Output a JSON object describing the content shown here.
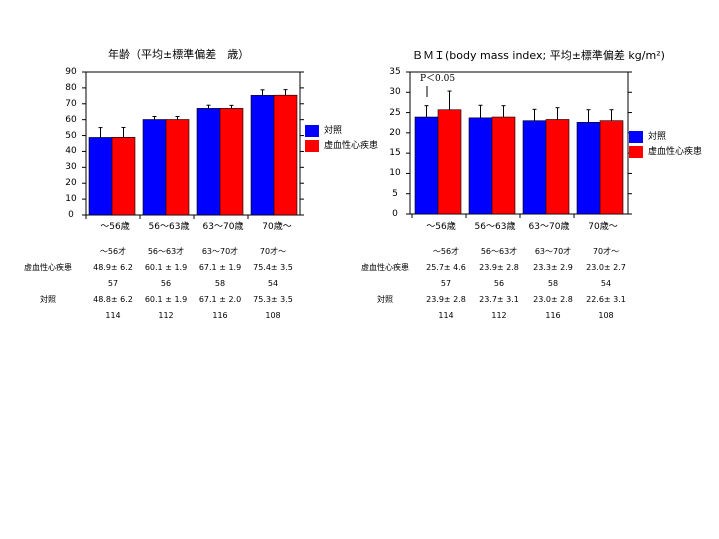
{
  "colors": {
    "control": "#0000ff",
    "disease": "#ff0000"
  },
  "legend": {
    "control": "対照",
    "disease": "虚血性心疾患"
  },
  "chart_data": [
    {
      "type": "bar",
      "title": "年齢（平均±標準偏差　歳）",
      "categories": [
        "～56歳",
        "56～63歳",
        "63～70歳",
        "70歳～"
      ],
      "ylim": [
        0,
        90
      ],
      "yticks": [
        0,
        10,
        20,
        30,
        40,
        50,
        60,
        70,
        80,
        90
      ],
      "series": [
        {
          "name": "対照",
          "values": [
            48.8,
            60.1,
            67.1,
            75.3
          ],
          "sd": [
            6.2,
            1.9,
            2.0,
            3.5
          ]
        },
        {
          "name": "虚血性心疾患",
          "values": [
            48.9,
            60.1,
            67.1,
            75.4
          ],
          "sd": [
            6.2,
            1.9,
            1.9,
            3.5
          ]
        }
      ]
    },
    {
      "type": "bar",
      "title": "ＢＭＩ(body mass index;  平均±標準偏差 kg/m²)",
      "annotation": "P＜0.05",
      "categories": [
        "～56歳",
        "56～63歳",
        "63～70歳",
        "70歳～"
      ],
      "ylim": [
        0,
        35
      ],
      "yticks": [
        0,
        5,
        10,
        15,
        20,
        25,
        30,
        35
      ],
      "series": [
        {
          "name": "対照",
          "values": [
            23.9,
            23.7,
            23.0,
            22.6
          ],
          "sd": [
            2.8,
            3.1,
            2.8,
            3.1
          ]
        },
        {
          "name": "虚血性心疾患",
          "values": [
            25.7,
            23.9,
            23.3,
            23.0
          ],
          "sd": [
            4.6,
            2.8,
            2.9,
            2.7
          ]
        }
      ]
    }
  ],
  "tables": [
    {
      "header": [
        "～56才",
        "56～63才",
        "63～70才",
        "70才～"
      ],
      "rows": [
        {
          "label": "虚血性心疾患",
          "values": [
            "48.9± 6.2",
            "60.1 ± 1.9",
            "67.1 ± 1.9",
            "75.4± 3.5"
          ]
        },
        {
          "label": "",
          "values": [
            "57",
            "56",
            "58",
            "54"
          ]
        },
        {
          "label": "対照",
          "values": [
            "48.8± 6.2",
            "60.1 ± 1.9",
            "67.1 ± 2.0",
            "75.3± 3.5"
          ]
        },
        {
          "label": "",
          "values": [
            "114",
            "112",
            "116",
            "108"
          ]
        }
      ]
    },
    {
      "header": [
        "～56才",
        "56～63才",
        "63～70才",
        "70才～"
      ],
      "rows": [
        {
          "label": "虚血性心疾患",
          "values": [
            "25.7± 4.6",
            "23.9± 2.8",
            "23.3± 2.9",
            "23.0± 2.7"
          ]
        },
        {
          "label": "",
          "values": [
            "57",
            "56",
            "58",
            "54"
          ]
        },
        {
          "label": "対照",
          "values": [
            "23.9± 2.8",
            "23.7± 3.1",
            "23.0± 2.8",
            "22.6± 3.1"
          ]
        },
        {
          "label": "",
          "values": [
            "114",
            "112",
            "116",
            "108"
          ]
        }
      ]
    }
  ]
}
